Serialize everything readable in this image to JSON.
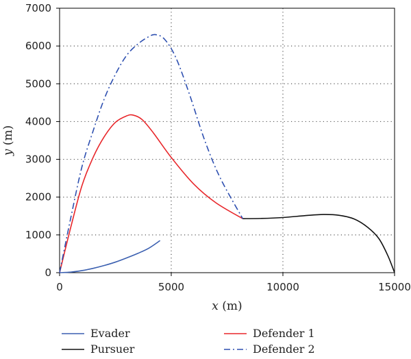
{
  "chart_data": {
    "type": "line",
    "xlabel": "x (m)",
    "ylabel": "y (m)",
    "xlim": [
      0,
      15000
    ],
    "ylim": [
      0,
      7000
    ],
    "xticks": [
      0,
      5000,
      10000,
      15000
    ],
    "yticks": [
      0,
      1000,
      2000,
      3000,
      4000,
      5000,
      6000,
      7000
    ],
    "grid": "dotted",
    "legend_position": "bottom",
    "series": [
      {
        "name": "Evader",
        "color": "#3a5fb0",
        "style": "solid",
        "x": [
          0,
          500,
          1000,
          1500,
          2000,
          2500,
          3000,
          3500,
          4000,
          4500
        ],
        "y": [
          0,
          15,
          55,
          115,
          190,
          280,
          390,
          510,
          650,
          850
        ]
      },
      {
        "name": "Pursuer",
        "color": "#111111",
        "style": "solid",
        "x": [
          8200,
          9000,
          10000,
          11000,
          11800,
          12500,
          13200,
          13800,
          14300,
          14700,
          15000
        ],
        "y": [
          1430,
          1435,
          1460,
          1510,
          1540,
          1520,
          1420,
          1200,
          900,
          450,
          0
        ]
      },
      {
        "name": "Defender 1",
        "color": "#e8262a",
        "style": "solid",
        "x": [
          0,
          500,
          1000,
          1500,
          2000,
          2500,
          3000,
          3300,
          3700,
          4200,
          5000,
          6000,
          7000,
          8200
        ],
        "y": [
          0,
          1200,
          2300,
          3050,
          3600,
          3980,
          4150,
          4170,
          4050,
          3700,
          3050,
          2350,
          1850,
          1430
        ]
      },
      {
        "name": "Defender 2",
        "color": "#2d4fb0",
        "style": "dashdot",
        "x": [
          0,
          500,
          1000,
          1500,
          2000,
          2500,
          3000,
          3500,
          4000,
          4300,
          4700,
          5200,
          5800,
          6500,
          7200,
          8200
        ],
        "y": [
          0,
          1450,
          2800,
          3750,
          4600,
          5250,
          5750,
          6050,
          6250,
          6300,
          6180,
          5700,
          4750,
          3500,
          2500,
          1430
        ]
      }
    ]
  }
}
